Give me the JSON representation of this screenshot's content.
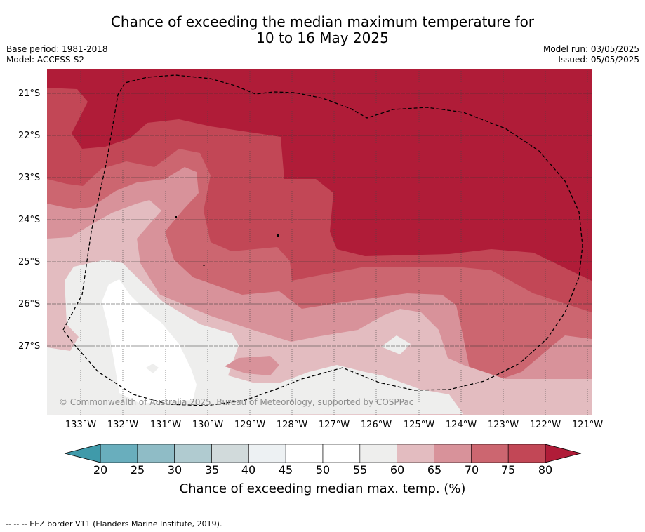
{
  "header": {
    "title_line1": "Chance of exceeding the median maximum temperature for",
    "title_line2": "10 to 16 May 2025",
    "base_period": "Base period: 1981-2018",
    "model": "Model: ACCESS-S2",
    "model_run": "Model run: 03/05/2025",
    "issued": "Issued: 05/05/2025"
  },
  "map": {
    "copyright": "© Commonwealth of Australia 2025, Bureau of Meteorology, supported by COSPPac",
    "lat_labels": [
      "21°S",
      "22°S",
      "23°S",
      "24°S",
      "25°S",
      "26°S",
      "27°S"
    ],
    "lon_labels": [
      "133°W",
      "132°W",
      "131°W",
      "130°W",
      "129°W",
      "128°W",
      "127°W",
      "126°W",
      "125°W",
      "124°W",
      "123°W",
      "122°W",
      "121°W"
    ],
    "colors": {
      "p80": "#b01c38",
      "p75": "#c24756",
      "p70": "#cc6670",
      "p65": "#d8929a",
      "p60": "#e3bcc0",
      "p55": "#eeeeed",
      "p50": "#ffffff"
    }
  },
  "colorbar": {
    "ticks": [
      "20",
      "25",
      "30",
      "35",
      "40",
      "45",
      "50",
      "55",
      "60",
      "65",
      "70",
      "75",
      "80"
    ],
    "colors": [
      "#69aebd",
      "#8fbcc6",
      "#b0cbd0",
      "#d1dadb",
      "#edf1f3",
      "#ffffff",
      "#ffffff",
      "#eeeeed",
      "#e3bcc0",
      "#d8929a",
      "#cc6670",
      "#c24756"
    ],
    "low_color": "#3f9aaa",
    "high_color": "#b01c38",
    "title": "Chance of exceeding median max. temp. (%)"
  },
  "footnote": "--  --  -- EEZ border V11 (Flanders Marine Institute, 2019)."
}
